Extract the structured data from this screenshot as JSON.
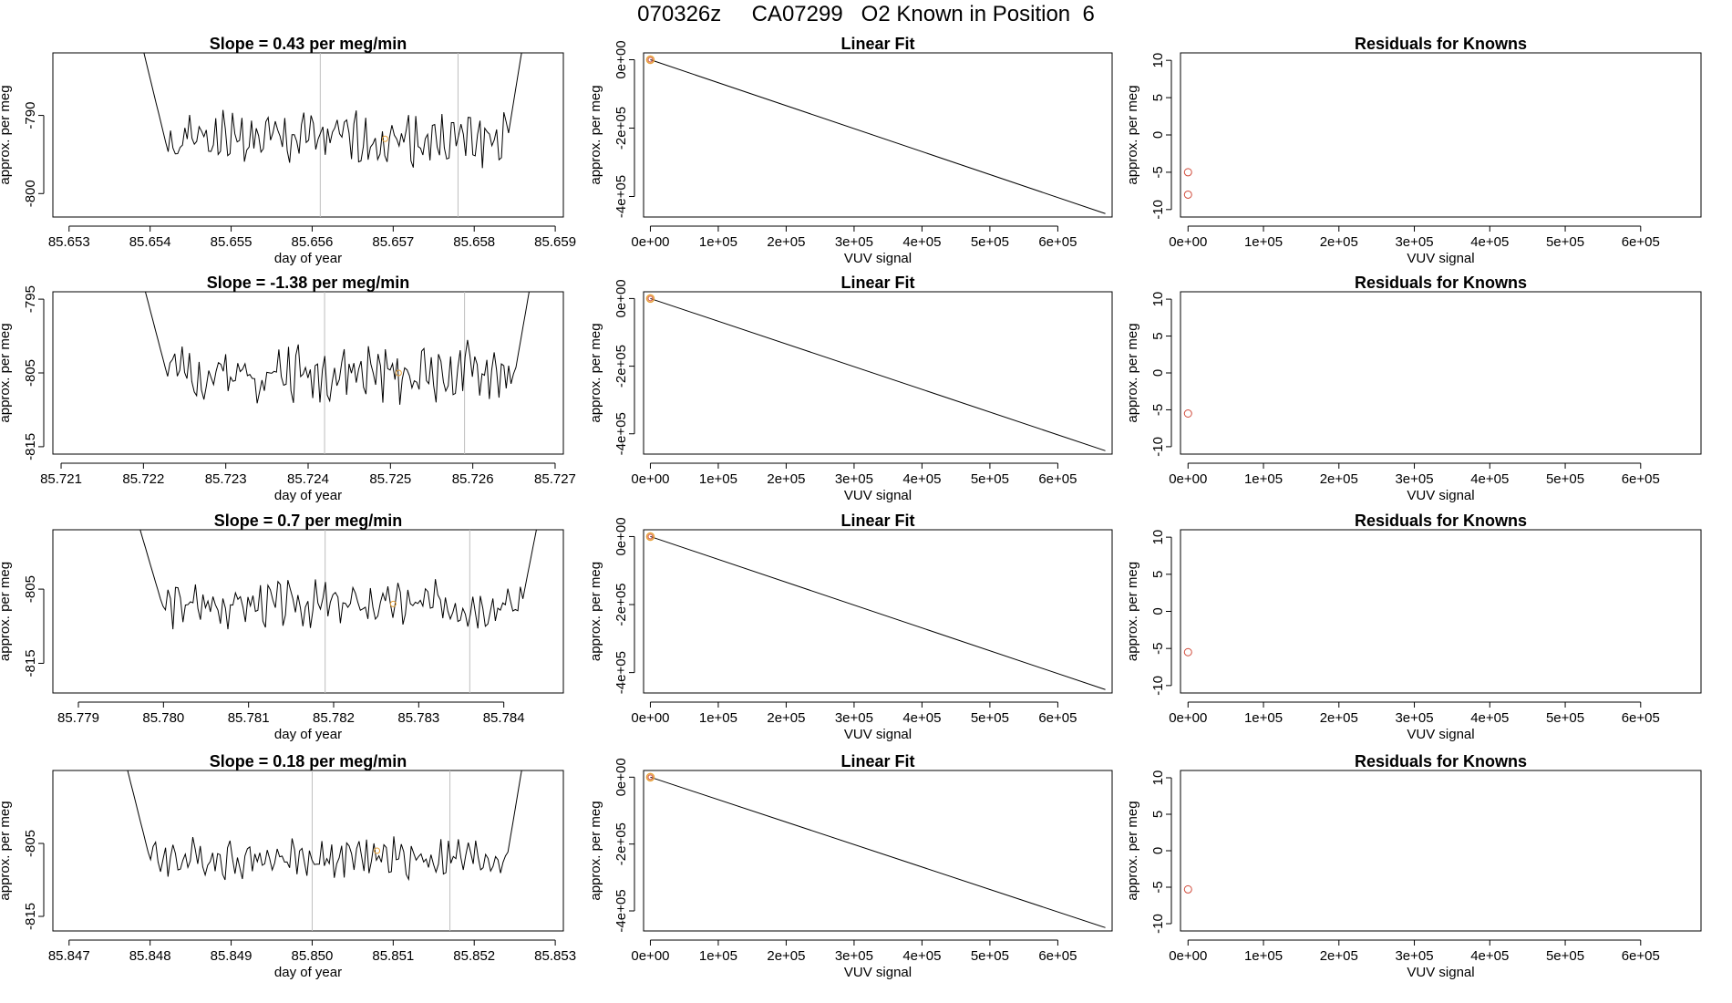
{
  "page": {
    "title": "070326z     CA07299   O2 Known in Position  6"
  },
  "colors": {
    "trace": "#000000",
    "event_line": "#bebebe",
    "marker_open": "#d04a3a",
    "marker_mean": "#e8a33a",
    "fit_line": "#000000"
  },
  "chart_data": [
    {
      "type": "line",
      "row": 1,
      "panel": "trace",
      "title": "Slope =  0.43  per meg/min",
      "xlabel": "day of year",
      "ylabel": "approx. per meg",
      "xlim": [
        85.6528,
        85.6591
      ],
      "ylim": [
        -803,
        -782
      ],
      "xticks": [
        85.653,
        85.654,
        85.655,
        85.656,
        85.657,
        85.658,
        85.659
      ],
      "xtick_labels": [
        "85.653",
        "85.654",
        "85.655",
        "85.656",
        "85.657",
        "85.658",
        "85.659"
      ],
      "yticks": [
        -800,
        -790
      ],
      "ytick_labels": [
        "-800",
        "-790"
      ],
      "vlines": [
        85.6561,
        85.6578
      ],
      "series": [
        {
          "name": "trace",
          "x_start": 85.6539,
          "x_end": 85.6586,
          "y_start": -781,
          "level": -793,
          "amplitude": 2.5,
          "y_end": -781,
          "seed": 1
        }
      ],
      "mean_marker": {
        "x": 85.6569,
        "y": -793
      }
    },
    {
      "type": "line",
      "row": 2,
      "panel": "trace",
      "title": "Slope =  -1.38  per meg/min",
      "xlabel": "day of year",
      "ylabel": "approx. per meg",
      "xlim": [
        85.7209,
        85.7271
      ],
      "ylim": [
        -816,
        -794
      ],
      "xticks": [
        85.721,
        85.722,
        85.723,
        85.724,
        85.725,
        85.726,
        85.727
      ],
      "xtick_labels": [
        "85.721",
        "85.722",
        "85.723",
        "85.724",
        "85.725",
        "85.726",
        "85.727"
      ],
      "yticks": [
        -815,
        -805,
        -795
      ],
      "ytick_labels": [
        "-815",
        "-805",
        "-795"
      ],
      "vlines": [
        85.7242,
        85.7259
      ],
      "series": [
        {
          "name": "trace",
          "x_start": 85.722,
          "x_end": 85.7267,
          "y_start": -793,
          "level": -805,
          "amplitude": 2.8,
          "y_end": -793,
          "seed": 2
        }
      ],
      "mean_marker": {
        "x": 85.7251,
        "y": -805
      }
    },
    {
      "type": "line",
      "row": 3,
      "panel": "trace",
      "title": "Slope =  0.7  per meg/min",
      "xlabel": "day of year",
      "ylabel": "approx. per meg",
      "xlim": [
        85.7787,
        85.7847
      ],
      "ylim": [
        -819,
        -797
      ],
      "xticks": [
        85.779,
        85.78,
        85.781,
        85.782,
        85.783,
        85.784
      ],
      "xtick_labels": [
        "85.779",
        "85.780",
        "85.781",
        "85.782",
        "85.783",
        "85.784"
      ],
      "yticks": [
        -815,
        -805
      ],
      "ytick_labels": [
        "-815",
        "-805"
      ],
      "vlines": [
        85.7819,
        85.7836
      ],
      "series": [
        {
          "name": "trace",
          "x_start": 85.7797,
          "x_end": 85.7844,
          "y_start": -796,
          "level": -807,
          "amplitude": 2.2,
          "y_end": -796,
          "seed": 3
        }
      ],
      "mean_marker": {
        "x": 85.7827,
        "y": -807
      }
    },
    {
      "type": "line",
      "row": 4,
      "panel": "trace",
      "title": "Slope =  0.18  per meg/min",
      "xlabel": "day of year",
      "ylabel": "approx. per meg",
      "xlim": [
        85.8468,
        85.8531
      ],
      "ylim": [
        -817,
        -795
      ],
      "xticks": [
        85.847,
        85.848,
        85.849,
        85.85,
        85.851,
        85.852,
        85.853
      ],
      "xtick_labels": [
        "85.847",
        "85.848",
        "85.849",
        "85.850",
        "85.851",
        "85.852",
        "85.853"
      ],
      "yticks": [
        -815,
        -805
      ],
      "ytick_labels": [
        "-815",
        "-805"
      ],
      "vlines": [
        85.85,
        85.8517
      ],
      "series": [
        {
          "name": "trace",
          "x_start": 85.8477,
          "x_end": 85.8526,
          "y_start": -794,
          "level": -807,
          "amplitude": 2.0,
          "y_end": -794,
          "seed": 4
        }
      ],
      "mean_marker": {
        "x": 85.8508,
        "y": -806
      }
    },
    {
      "type": "line",
      "row": 1,
      "panel": "fit",
      "title": "Linear Fit",
      "xlabel": "VUV signal",
      "ylabel": "approx. per meg",
      "xlim": [
        -10000,
        680000
      ],
      "ylim": [
        -460000,
        20000
      ],
      "xticks": [
        0,
        100000,
        200000,
        300000,
        400000,
        500000,
        600000
      ],
      "xtick_labels": [
        "0e+00",
        "1e+05",
        "2e+05",
        "3e+05",
        "4e+05",
        "5e+05",
        "6e+05"
      ],
      "yticks": [
        0,
        -200000,
        -400000
      ],
      "ytick_labels": [
        "0e+00",
        "-2e+05",
        "-4e+05"
      ],
      "line": {
        "x": [
          0,
          670000
        ],
        "y": [
          0,
          -450000
        ]
      },
      "points": [
        {
          "x": 0,
          "y": 0
        }
      ]
    },
    {
      "type": "line",
      "row": 2,
      "panel": "fit",
      "title": "Linear Fit",
      "xlabel": "VUV signal",
      "ylabel": "approx. per meg",
      "xlim": [
        -10000,
        680000
      ],
      "ylim": [
        -460000,
        20000
      ],
      "xticks": [
        0,
        100000,
        200000,
        300000,
        400000,
        500000,
        600000
      ],
      "xtick_labels": [
        "0e+00",
        "1e+05",
        "2e+05",
        "3e+05",
        "4e+05",
        "5e+05",
        "6e+05"
      ],
      "yticks": [
        0,
        -200000,
        -400000
      ],
      "ytick_labels": [
        "0e+00",
        "-2e+05",
        "-4e+05"
      ],
      "line": {
        "x": [
          0,
          670000
        ],
        "y": [
          0,
          -450000
        ]
      },
      "points": [
        {
          "x": 0,
          "y": 0
        }
      ]
    },
    {
      "type": "line",
      "row": 3,
      "panel": "fit",
      "title": "Linear Fit",
      "xlabel": "VUV signal",
      "ylabel": "approx. per meg",
      "xlim": [
        -10000,
        680000
      ],
      "ylim": [
        -460000,
        20000
      ],
      "xticks": [
        0,
        100000,
        200000,
        300000,
        400000,
        500000,
        600000
      ],
      "xtick_labels": [
        "0e+00",
        "1e+05",
        "2e+05",
        "3e+05",
        "4e+05",
        "5e+05",
        "6e+05"
      ],
      "yticks": [
        0,
        -200000,
        -400000
      ],
      "ytick_labels": [
        "0e+00",
        "-2e+05",
        "-4e+05"
      ],
      "line": {
        "x": [
          0,
          670000
        ],
        "y": [
          0,
          -450000
        ]
      },
      "points": [
        {
          "x": 0,
          "y": 0
        }
      ]
    },
    {
      "type": "line",
      "row": 4,
      "panel": "fit",
      "title": "Linear Fit",
      "xlabel": "VUV signal",
      "ylabel": "approx. per meg",
      "xlim": [
        -10000,
        680000
      ],
      "ylim": [
        -460000,
        20000
      ],
      "xticks": [
        0,
        100000,
        200000,
        300000,
        400000,
        500000,
        600000
      ],
      "xtick_labels": [
        "0e+00",
        "1e+05",
        "2e+05",
        "3e+05",
        "4e+05",
        "5e+05",
        "6e+05"
      ],
      "yticks": [
        0,
        -200000,
        -400000
      ],
      "ytick_labels": [
        "0e+00",
        "-2e+05",
        "-4e+05"
      ],
      "line": {
        "x": [
          0,
          670000
        ],
        "y": [
          0,
          -450000
        ]
      },
      "points": [
        {
          "x": 0,
          "y": 0
        }
      ]
    },
    {
      "type": "scatter",
      "row": 1,
      "panel": "residuals",
      "title": "Residuals for Knowns",
      "xlabel": "VUV signal",
      "ylabel": "approx. per meg",
      "xlim": [
        -10000,
        680000
      ],
      "ylim": [
        -11,
        11
      ],
      "xticks": [
        0,
        100000,
        200000,
        300000,
        400000,
        500000,
        600000
      ],
      "xtick_labels": [
        "0e+00",
        "1e+05",
        "2e+05",
        "3e+05",
        "4e+05",
        "5e+05",
        "6e+05"
      ],
      "yticks": [
        10,
        5,
        0,
        -5,
        -10
      ],
      "ytick_labels": [
        "10",
        "5",
        "0",
        "-5",
        "-10"
      ],
      "points": [
        {
          "x": 0,
          "y": -5
        },
        {
          "x": 0,
          "y": -8
        }
      ]
    },
    {
      "type": "scatter",
      "row": 2,
      "panel": "residuals",
      "title": "Residuals for Knowns",
      "xlabel": "VUV signal",
      "ylabel": "approx. per meg",
      "xlim": [
        -10000,
        680000
      ],
      "ylim": [
        -11,
        11
      ],
      "xticks": [
        0,
        100000,
        200000,
        300000,
        400000,
        500000,
        600000
      ],
      "xtick_labels": [
        "0e+00",
        "1e+05",
        "2e+05",
        "3e+05",
        "4e+05",
        "5e+05",
        "6e+05"
      ],
      "yticks": [
        10,
        5,
        0,
        -5,
        -10
      ],
      "ytick_labels": [
        "10",
        "5",
        "0",
        "-5",
        "-10"
      ],
      "points": [
        {
          "x": 0,
          "y": -5.5
        }
      ]
    },
    {
      "type": "scatter",
      "row": 3,
      "panel": "residuals",
      "title": "Residuals for Knowns",
      "xlabel": "VUV signal",
      "ylabel": "approx. per meg",
      "xlim": [
        -10000,
        680000
      ],
      "ylim": [
        -11,
        11
      ],
      "xticks": [
        0,
        100000,
        200000,
        300000,
        400000,
        500000,
        600000
      ],
      "xtick_labels": [
        "0e+00",
        "1e+05",
        "2e+05",
        "3e+05",
        "4e+05",
        "5e+05",
        "6e+05"
      ],
      "yticks": [
        10,
        5,
        0,
        -5,
        -10
      ],
      "ytick_labels": [
        "10",
        "5",
        "0",
        "-5",
        "-10"
      ],
      "points": [
        {
          "x": 0,
          "y": -5.5
        }
      ]
    },
    {
      "type": "scatter",
      "row": 4,
      "panel": "residuals",
      "title": "Residuals for Knowns",
      "xlabel": "VUV signal",
      "ylabel": "approx. per meg",
      "xlim": [
        -10000,
        680000
      ],
      "ylim": [
        -11,
        11
      ],
      "xticks": [
        0,
        100000,
        200000,
        300000,
        400000,
        500000,
        600000
      ],
      "xtick_labels": [
        "0e+00",
        "1e+05",
        "2e+05",
        "3e+05",
        "4e+05",
        "5e+05",
        "6e+05"
      ],
      "yticks": [
        10,
        5,
        0,
        -5,
        -10
      ],
      "ytick_labels": [
        "10",
        "5",
        "0",
        "-5",
        "-10"
      ],
      "points": [
        {
          "x": 0,
          "y": -5.3
        }
      ]
    }
  ]
}
